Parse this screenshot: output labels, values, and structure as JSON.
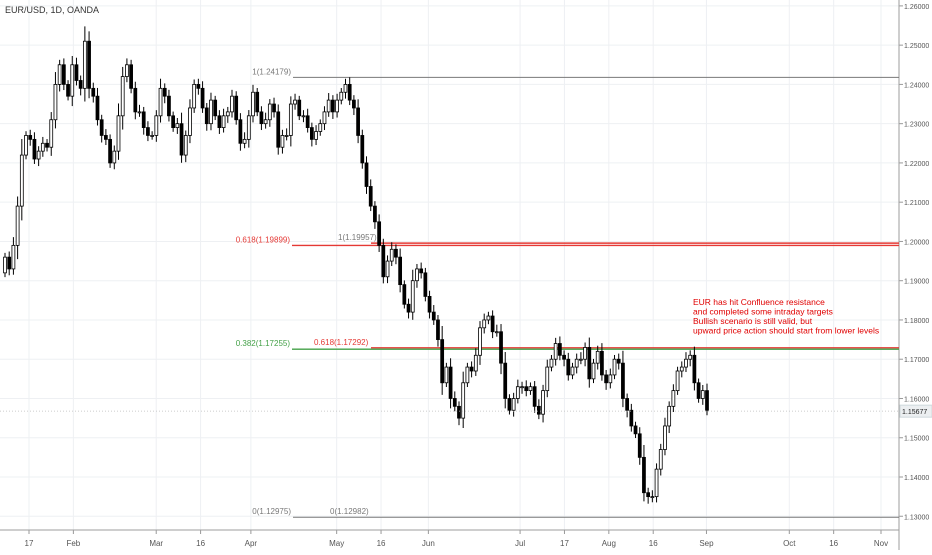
{
  "symbol_title": "EUR/USD, 1D, OANDA",
  "colors": {
    "bull": "#ffffff",
    "bear": "#000000",
    "wick": "#000000",
    "grid": "#eef0f3",
    "axis": "#555555",
    "fib_gray": "#787878",
    "fib_red": "#e53935",
    "fib_green": "#43a047",
    "level_green": "#00c853",
    "note": "#e00000"
  },
  "chart_data": {
    "type": "candlestick",
    "title": "EUR/USD, 1D, OANDA",
    "ylim": [
      1.1265,
      1.2615
    ],
    "grid": true,
    "y_ticks": [
      "1.13000",
      "1.14000",
      "1.15000",
      "1.16000",
      "1.17000",
      "1.18000",
      "1.19000",
      "1.20000",
      "1.21000",
      "1.22000",
      "1.23000",
      "1.24000",
      "1.25000",
      "1.26000"
    ],
    "x_ticks": [
      "17",
      "Feb",
      "Mar",
      "16",
      "Apr",
      "May",
      "16",
      "Jun",
      "Jul",
      "17",
      "Aug",
      "16",
      "Sep",
      "Oct",
      "16",
      "Nov"
    ],
    "x_tick_dates": [
      "2018-01-17",
      "2018-02-01",
      "2018-03-01",
      "2018-03-16",
      "2018-04-02",
      "2018-05-01",
      "2018-05-16",
      "2018-06-01",
      "2018-07-02",
      "2018-07-17",
      "2018-08-01",
      "2018-08-16",
      "2018-09-03",
      "2018-10-01",
      "2018-10-16",
      "2018-11-01"
    ],
    "last_price": "1.15677",
    "closes": [
      1.196,
      1.193,
      1.199,
      1.209,
      1.222,
      1.227,
      1.226,
      1.221,
      1.223,
      1.225,
      1.224,
      1.231,
      1.24,
      1.245,
      1.24,
      1.237,
      1.245,
      1.241,
      1.239,
      1.251,
      1.239,
      1.237,
      1.231,
      1.227,
      1.226,
      1.22,
      1.223,
      1.232,
      1.242,
      1.245,
      1.239,
      1.233,
      1.233,
      1.229,
      1.227,
      1.227,
      1.232,
      1.239,
      1.237,
      1.232,
      1.229,
      1.23,
      1.222,
      1.227,
      1.234,
      1.24,
      1.239,
      1.234,
      1.23,
      1.236,
      1.232,
      1.229,
      1.232,
      1.233,
      1.237,
      1.231,
      1.225,
      1.226,
      1.232,
      1.238,
      1.233,
      1.23,
      1.231,
      1.235,
      1.233,
      1.224,
      1.227,
      1.227,
      1.235,
      1.236,
      1.232,
      1.232,
      1.229,
      1.226,
      1.228,
      1.23,
      1.233,
      1.236,
      1.233,
      1.236,
      1.238,
      1.24,
      1.236,
      1.234,
      1.227,
      1.22,
      1.214,
      1.209,
      1.205,
      1.199,
      1.191,
      1.195,
      1.198,
      1.196,
      1.189,
      1.184,
      1.182,
      1.19,
      1.193,
      1.192,
      1.186,
      1.182,
      1.18,
      1.175,
      1.164,
      1.168,
      1.16,
      1.158,
      1.155,
      1.164,
      1.168,
      1.167,
      1.171,
      1.178,
      1.18,
      1.181,
      1.177,
      1.177,
      1.169,
      1.16,
      1.157,
      1.16,
      1.163,
      1.163,
      1.162,
      1.163,
      1.158,
      1.156,
      1.162,
      1.168,
      1.17,
      1.174,
      1.171,
      1.17,
      1.166,
      1.168,
      1.17,
      1.17,
      1.173,
      1.165,
      1.169,
      1.172,
      1.166,
      1.164,
      1.166,
      1.17,
      1.169,
      1.16,
      1.157,
      1.153,
      1.151,
      1.145,
      1.136,
      1.135,
      1.135,
      1.142,
      1.147,
      1.153,
      1.158,
      1.162,
      1.167,
      1.168,
      1.17,
      1.171,
      1.164,
      1.16,
      1.162,
      1.157
    ]
  },
  "annotations": {
    "fib_1": "1(1.24179)",
    "fib_0618_left": "0.618(1.19899)",
    "fib_1_right": "1(1.19957)",
    "fib_0382": "0.382(1.17255)",
    "fib_0618_right": "0.618(1.17292)",
    "fib_0_left": "0(1.12975)",
    "fib_0_right": "0(1.12982)",
    "note_lines": [
      "EUR has hit Confluence resistance",
      "and completed some intraday targets",
      "Bullish scenario is still valid, but",
      "upward price action should start from lower levels"
    ]
  }
}
